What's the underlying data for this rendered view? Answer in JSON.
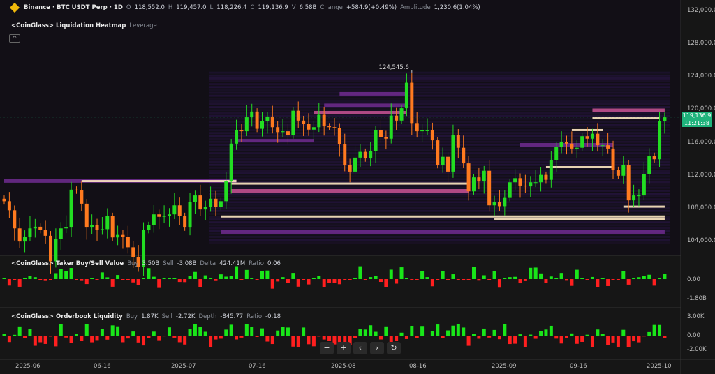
{
  "header": {
    "exchange": "Binance · BTC USDT Perp · 1D",
    "o_label": "O",
    "o": "118,552.0",
    "h_label": "H",
    "h": "119,457.0",
    "l_label": "L",
    "l": "118,226.4",
    "c_label": "C",
    "c": "119,136.9",
    "v_label": "V",
    "v": "6.58B",
    "change_label": "Change",
    "change": "+584.9(+0.49%)",
    "amplitude_label": "Amplitude",
    "amplitude": "1,230.6(1.04%)"
  },
  "heatmap": {
    "title": "<CoinGlass> Liquidation Heatmap",
    "sub": "Leverage",
    "collapse": "^"
  },
  "taker": {
    "title": "<CoinGlass> Taker Buy/Sell Value",
    "buy_label": "Buy",
    "buy": "3.50B",
    "sell_label": "Sell",
    "sell": "-3.08B",
    "delta_label": "Delta",
    "delta": "424.41M",
    "ratio_label": "Ratio",
    "ratio": "0.06",
    "axis": [
      "0.00",
      "-1.80B"
    ]
  },
  "orderbook": {
    "title": "<CoinGlass> Orderbook Liquidity",
    "buy_label": "Buy",
    "buy": "1.87K",
    "sell_label": "Sell",
    "sell": "-2.72K",
    "depth_label": "Depth",
    "depth": "-845.77",
    "ratio_label": "Ratio",
    "ratio": "-0.18",
    "axis": [
      "3.00K",
      "0.00",
      "-2.00K"
    ]
  },
  "tools": [
    "−",
    "+",
    "‹",
    "›",
    "↻"
  ],
  "price_tag": {
    "price": "119,136.9",
    "countdown": "11:21:38"
  },
  "colors": {
    "up": "#22dd22",
    "down": "#ff7a1f",
    "bar_up": "#19e619",
    "bar_down": "#ff1f1f",
    "tag": "#1fb37c"
  },
  "chart_data": {
    "type": "candlestick",
    "start_date": "2025-05-27",
    "ylim": [
      102000,
      132000
    ],
    "y_ticks": [
      "132,000.0",
      "128,000.0",
      "124,000.0",
      "120,000.0",
      "116,000.0",
      "112,000.0",
      "108,000.0",
      "104,000.0"
    ],
    "x_ticks": [
      "2025-06",
      "06-16",
      "2025-07",
      "07-16",
      "2025-08",
      "08-16",
      "2025-09",
      "09-16",
      "2025-10"
    ],
    "max_label": "124,545.6",
    "closes": [
      108.9,
      107.8,
      105.6,
      104.0,
      104.6,
      105.6,
      105.8,
      105.4,
      104.7,
      101.6,
      104.3,
      105.6,
      105.7,
      110.3,
      110.2,
      108.6,
      105.7,
      106.0,
      105.4,
      105.5,
      107.1,
      104.5,
      104.8,
      104.6,
      103.3,
      102.1,
      100.9,
      105.4,
      106.0,
      107.3,
      107.0,
      107.1,
      107.3,
      108.4,
      107.1,
      105.7,
      108.8,
      109.6,
      107.9,
      108.2,
      109.2,
      108.2,
      108.9,
      111.3,
      115.9,
      117.5,
      117.4,
      119.1,
      119.8,
      117.7,
      118.6,
      119.2,
      117.9,
      117.3,
      117.4,
      116.9,
      119.9,
      118.7,
      118.3,
      117.6,
      117.9,
      119.4,
      118.0,
      117.9,
      117.8,
      115.8,
      113.3,
      112.5,
      114.2,
      114.9,
      114.1,
      115.0,
      117.5,
      116.7,
      116.5,
      119.3,
      118.7,
      120.2,
      123.3,
      118.4,
      117.4,
      117.5,
      117.5,
      116.3,
      113.3,
      114.3,
      112.5,
      116.9,
      115.4,
      113.5,
      110.1,
      111.8,
      111.3,
      112.6,
      108.4,
      108.8,
      108.3,
      109.3,
      111.2,
      111.7,
      110.8,
      110.7,
      111.2,
      111.2,
      112.1,
      111.5,
      113.9,
      115.5,
      116.1,
      115.9,
      115.3,
      115.4,
      116.8,
      116.5,
      117.1,
      115.7,
      115.7,
      115.3,
      112.7,
      112.0,
      113.3,
      109.0,
      109.6,
      109.6,
      112.2,
      114.4,
      114.0,
      118.6,
      119.1
    ],
    "liquidation_bands": [
      {
        "price": 111400,
        "from": 0,
        "to": 45,
        "intensity": 0.5
      },
      {
        "price": 111300,
        "from": 15,
        "to": 45,
        "intensity": 1
      },
      {
        "price": 111000,
        "from": 44,
        "to": 90,
        "intensity": 0.9
      },
      {
        "price": 110200,
        "from": 44,
        "to": 90,
        "intensity": 0.6
      },
      {
        "price": 107000,
        "from": 42,
        "to": 128,
        "intensity": 0.9
      },
      {
        "price": 106700,
        "from": 95,
        "to": 128,
        "intensity": 1
      },
      {
        "price": 108200,
        "from": 120,
        "to": 128,
        "intensity": 0.9
      },
      {
        "price": 105200,
        "from": 42,
        "to": 128,
        "intensity": 0.4
      },
      {
        "price": 119700,
        "from": 60,
        "to": 78,
        "intensity": 0.6
      },
      {
        "price": 120600,
        "from": 62,
        "to": 78,
        "intensity": 0.5
      },
      {
        "price": 122000,
        "from": 65,
        "to": 78,
        "intensity": 0.4
      },
      {
        "price": 120000,
        "from": 114,
        "to": 128,
        "intensity": 0.6
      },
      {
        "price": 119000,
        "from": 114,
        "to": 127,
        "intensity": 1
      },
      {
        "price": 117500,
        "from": 110,
        "to": 116,
        "intensity": 1
      },
      {
        "price": 113000,
        "from": 105,
        "to": 118,
        "intensity": 0.9
      },
      {
        "price": 115800,
        "from": 100,
        "to": 118,
        "intensity": 0.5
      },
      {
        "price": 116300,
        "from": 45,
        "to": 60,
        "intensity": 0.4
      }
    ]
  }
}
